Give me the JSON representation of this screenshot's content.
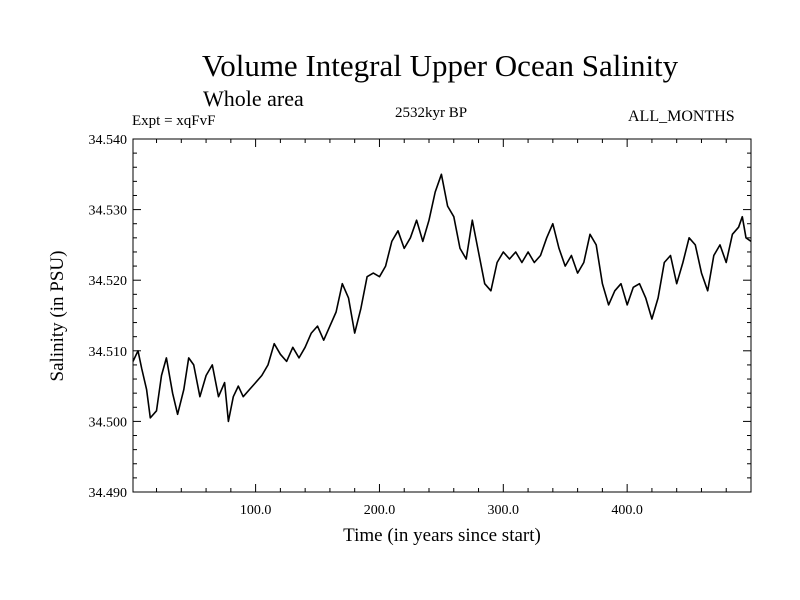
{
  "header": {
    "title": "Volume Integral Upper Ocean Salinity",
    "subtitle": "Whole area",
    "experiment": "Expt = xqFvF",
    "timestamp": "2532kyr BP",
    "months": "ALL_MONTHS"
  },
  "chart_data": {
    "type": "line",
    "title": "Volume Integral Upper Ocean Salinity",
    "xlabel": "Time (in years since start)",
    "ylabel": "Salinity (in PSU)",
    "xlim": [
      1,
      500
    ],
    "ylim": [
      34.49,
      34.54
    ],
    "xticks": [
      100.0,
      200.0,
      300.0,
      400.0
    ],
    "xtick_labels": [
      "100.0",
      "200.0",
      "300.0",
      "400.0"
    ],
    "yticks": [
      34.49,
      34.5,
      34.51,
      34.52,
      34.53,
      34.54
    ],
    "ytick_labels": [
      "34.490",
      "34.500",
      "34.510",
      "34.520",
      "34.530",
      "34.540"
    ],
    "grid": false,
    "series": [
      {
        "name": "Salinity",
        "x": [
          1,
          5,
          8,
          12,
          15,
          20,
          24,
          28,
          33,
          37,
          42,
          46,
          50,
          55,
          60,
          65,
          70,
          75,
          78,
          82,
          86,
          90,
          95,
          100,
          105,
          110,
          115,
          120,
          125,
          130,
          135,
          140,
          145,
          150,
          155,
          160,
          165,
          170,
          175,
          180,
          185,
          190,
          195,
          200,
          205,
          210,
          215,
          220,
          225,
          230,
          235,
          240,
          245,
          250,
          255,
          260,
          265,
          270,
          275,
          280,
          285,
          290,
          295,
          300,
          305,
          310,
          315,
          320,
          325,
          330,
          335,
          340,
          345,
          350,
          355,
          360,
          365,
          370,
          375,
          380,
          385,
          390,
          395,
          400,
          405,
          410,
          415,
          420,
          425,
          430,
          435,
          440,
          445,
          450,
          455,
          460,
          465,
          470,
          475,
          480,
          485,
          490,
          493,
          496,
          500
        ],
        "values": [
          34.5085,
          34.51,
          34.5075,
          34.5045,
          34.5005,
          34.5015,
          34.5065,
          34.509,
          34.504,
          34.501,
          34.5045,
          34.509,
          34.508,
          34.5035,
          34.5065,
          34.508,
          34.5035,
          34.5055,
          34.5,
          34.5035,
          34.505,
          34.5035,
          34.5045,
          34.5055,
          34.5065,
          34.508,
          34.511,
          34.5095,
          34.5085,
          34.5105,
          34.509,
          34.5105,
          34.5125,
          34.5135,
          34.5115,
          34.5135,
          34.5155,
          34.5195,
          34.5175,
          34.5125,
          34.516,
          34.5205,
          34.521,
          34.5205,
          34.522,
          34.5255,
          34.527,
          34.5245,
          34.526,
          34.5285,
          34.5255,
          34.5285,
          34.5325,
          34.535,
          34.5305,
          34.529,
          34.5245,
          34.523,
          34.5285,
          34.524,
          34.5195,
          34.5185,
          34.5225,
          34.524,
          34.523,
          34.524,
          34.5225,
          34.524,
          34.5225,
          34.5235,
          34.526,
          34.528,
          34.5245,
          34.522,
          34.5235,
          34.521,
          34.5225,
          34.5265,
          34.525,
          34.5195,
          34.5165,
          34.5185,
          34.5195,
          34.5165,
          34.519,
          34.5195,
          34.5175,
          34.5145,
          34.5175,
          34.5225,
          34.5235,
          34.5195,
          34.5225,
          34.526,
          34.525,
          34.521,
          34.5185,
          34.5235,
          34.525,
          34.5225,
          34.5265,
          34.5275,
          34.529,
          34.526,
          34.5255
        ]
      }
    ]
  }
}
